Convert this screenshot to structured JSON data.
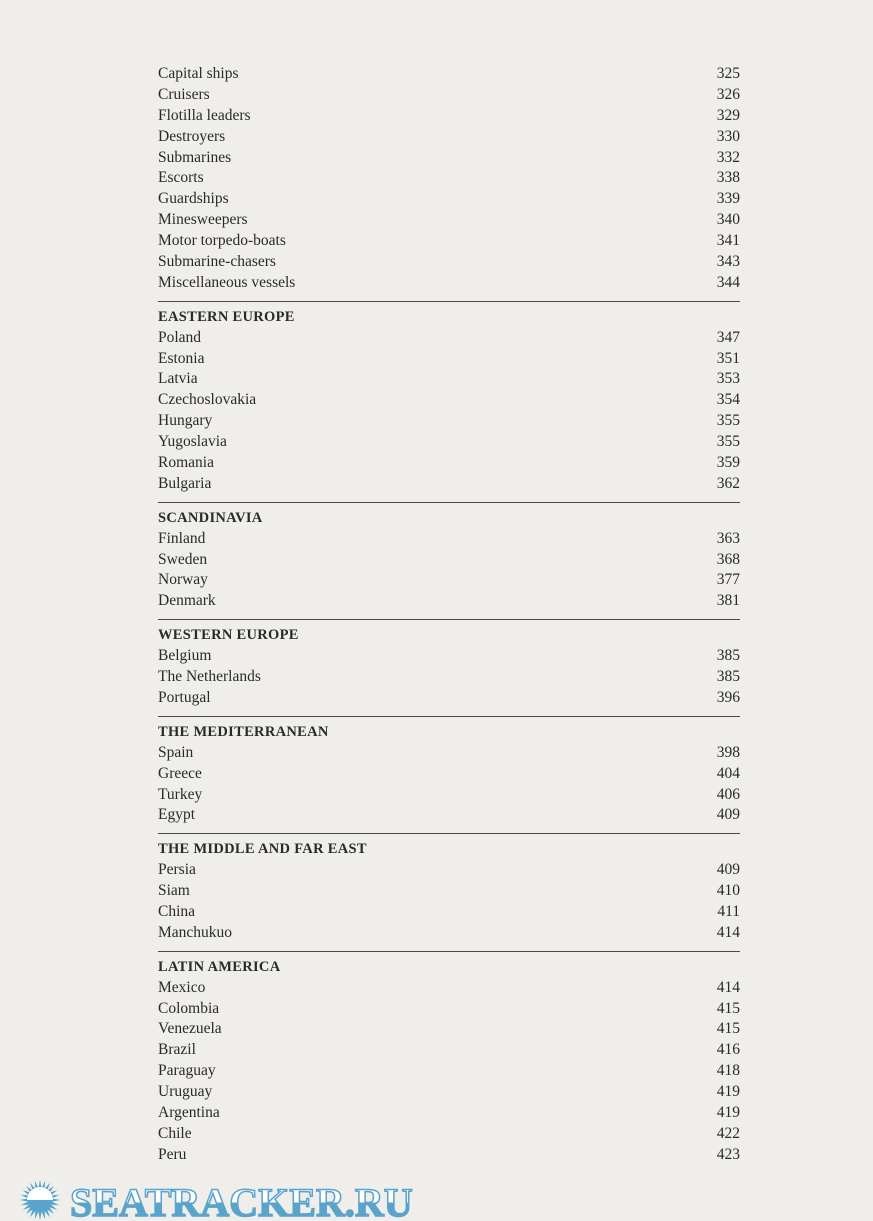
{
  "intro_items": [
    {
      "label": "Capital ships",
      "page": "325"
    },
    {
      "label": "Cruisers",
      "page": "326"
    },
    {
      "label": "Flotilla leaders",
      "page": "329"
    },
    {
      "label": "Destroyers",
      "page": "330"
    },
    {
      "label": "Submarines",
      "page": "332"
    },
    {
      "label": "Escorts",
      "page": "338"
    },
    {
      "label": "Guardships",
      "page": "339"
    },
    {
      "label": "Minesweepers",
      "page": "340"
    },
    {
      "label": "Motor torpedo-boats",
      "page": "341"
    },
    {
      "label": "Submarine-chasers",
      "page": "343"
    },
    {
      "label": "Miscellaneous vessels",
      "page": "344"
    }
  ],
  "sections": [
    {
      "heading": "EASTERN EUROPE",
      "items": [
        {
          "label": "Poland",
          "page": "347"
        },
        {
          "label": "Estonia",
          "page": "351"
        },
        {
          "label": "Latvia",
          "page": "353"
        },
        {
          "label": "Czechoslovakia",
          "page": "354"
        },
        {
          "label": "Hungary",
          "page": "355"
        },
        {
          "label": "Yugoslavia",
          "page": "355"
        },
        {
          "label": "Romania",
          "page": "359"
        },
        {
          "label": "Bulgaria",
          "page": "362"
        }
      ]
    },
    {
      "heading": "SCANDINAVIA",
      "items": [
        {
          "label": "Finland",
          "page": "363"
        },
        {
          "label": "Sweden",
          "page": "368"
        },
        {
          "label": "Norway",
          "page": "377"
        },
        {
          "label": "Denmark",
          "page": "381"
        }
      ]
    },
    {
      "heading": "WESTERN EUROPE",
      "items": [
        {
          "label": "Belgium",
          "page": "385"
        },
        {
          "label": "The Netherlands",
          "page": "385"
        },
        {
          "label": "Portugal",
          "page": "396"
        }
      ]
    },
    {
      "heading": "THE MEDITERRANEAN",
      "items": [
        {
          "label": "Spain",
          "page": "398"
        },
        {
          "label": "Greece",
          "page": "404"
        },
        {
          "label": "Turkey",
          "page": "406"
        },
        {
          "label": "Egypt",
          "page": "409"
        }
      ]
    },
    {
      "heading": "THE MIDDLE AND FAR EAST",
      "items": [
        {
          "label": "Persia",
          "page": "409"
        },
        {
          "label": "Siam",
          "page": "410"
        },
        {
          "label": "China",
          "page": "411"
        },
        {
          "label": "Manchukuo",
          "page": "414"
        }
      ]
    },
    {
      "heading": "LATIN AMERICA",
      "items": [
        {
          "label": "Mexico",
          "page": "414"
        },
        {
          "label": "Colombia",
          "page": "415"
        },
        {
          "label": "Venezuela",
          "page": "415"
        },
        {
          "label": "Brazil",
          "page": "416"
        },
        {
          "label": "Paraguay",
          "page": "418"
        },
        {
          "label": "Uruguay",
          "page": "419"
        },
        {
          "label": "Argentina",
          "page": "419"
        },
        {
          "label": "Chile",
          "page": "422"
        },
        {
          "label": "Peru",
          "page": "423"
        }
      ]
    }
  ],
  "watermark": {
    "text": "SEATRACKER.RU",
    "color": "#5aa3cb"
  }
}
